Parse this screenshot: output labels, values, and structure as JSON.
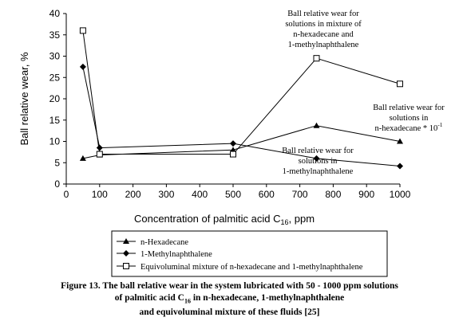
{
  "chart_data": {
    "type": "line",
    "xlabel_main": "Concentration of palmitic acid C",
    "xlabel_sub": "16",
    "xlabel_tail": ", ppm",
    "ylabel": "Ball relative wear, %",
    "xlim": [
      0,
      1000
    ],
    "ylim": [
      0,
      40
    ],
    "xticks": [
      0,
      100,
      200,
      300,
      400,
      500,
      600,
      700,
      800,
      900,
      1000
    ],
    "yticks": [
      0,
      5,
      10,
      15,
      20,
      25,
      30,
      35,
      40
    ],
    "grid": false,
    "series": [
      {
        "name": "n-Hexadecane",
        "marker": "triangle",
        "x": [
          50,
          100,
          500,
          750,
          1000
        ],
        "y": [
          6,
          6.8,
          8,
          13.7,
          10
        ]
      },
      {
        "name": "1-Methylnaphthalene",
        "marker": "diamond",
        "x": [
          50,
          100,
          500,
          750,
          1000
        ],
        "y": [
          27.5,
          8.5,
          9.5,
          6,
          4.2
        ]
      },
      {
        "name": "Equivoluminal mixture of n-hexadecane and 1-methylnaphthalene",
        "marker": "square",
        "x": [
          50,
          100,
          500,
          750,
          1000
        ],
        "y": [
          36,
          7,
          7,
          29.5,
          23.5
        ]
      }
    ],
    "annotations": [
      {
        "lines": [
          "Ball relative wear for",
          "solutions in mixture of",
          "n-hexadecane and",
          "1-methylnaphthalene"
        ]
      },
      {
        "lines": [
          "Ball relative wear for",
          "solutions in",
          "n-hexadecane * 10"
        ],
        "superscript": "-1"
      },
      {
        "lines": [
          "Ball relative wear for",
          "solutions in",
          "1-methylnaphthalene"
        ]
      }
    ],
    "legend_position": "bottom"
  },
  "caption": {
    "line1": "Figure 13. The ball relative wear in the system lubricated with 50 - 1000 ppm solutions",
    "line2_pre": "of palmitic acid  C",
    "line2_sub": "16",
    "line2_post": " in n-hexadecane, 1-methylnaphthalene",
    "line3": "and equivoluminal mixture of these fluids [25]"
  }
}
